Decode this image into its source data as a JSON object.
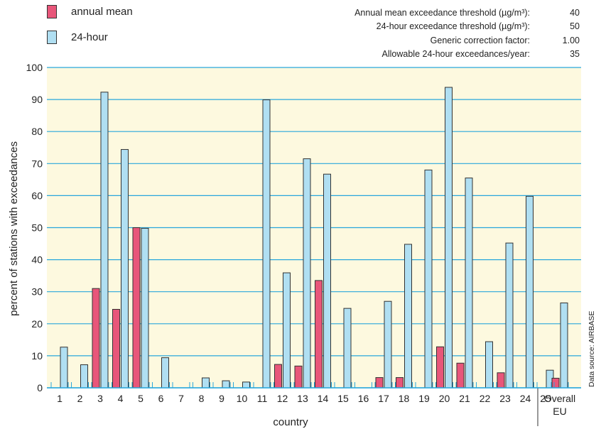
{
  "legend": {
    "items": [
      {
        "label": "annual mean",
        "color": "#e8567a"
      },
      {
        "label": "24-hour",
        "color": "#b0dff2"
      }
    ]
  },
  "parameters": [
    {
      "label": "Annual mean exceedance threshold (µg/m³):",
      "value": "40"
    },
    {
      "label": "24-hour exceedance threshold (µg/m³):",
      "value": "50"
    },
    {
      "label": "Generic correction factor:",
      "value": "1.00"
    },
    {
      "label": "Allowable 24-hour exceedances/year:",
      "value": "35"
    }
  ],
  "source": "Data source: AIRBASE",
  "chart_data": {
    "type": "bar",
    "title": "",
    "xlabel": "country",
    "ylabel": "percent of stations with exceedances",
    "ylim": [
      0,
      100
    ],
    "yticks": [
      0,
      10,
      20,
      30,
      40,
      50,
      60,
      70,
      80,
      90,
      100
    ],
    "grid": true,
    "legend_position": "top-left",
    "background_color": "#fdf9df",
    "grid_color": "#29a7dc",
    "categories": [
      "1",
      "2",
      "3",
      "4",
      "5",
      "6",
      "7",
      "8",
      "9",
      "10",
      "11",
      "12",
      "13",
      "14",
      "15",
      "16",
      "17",
      "18",
      "19",
      "20",
      "21",
      "22",
      "23",
      "24",
      "25",
      "Overall EU"
    ],
    "series": [
      {
        "name": "annual mean",
        "color": "#e8567a",
        "values": [
          0,
          0,
          31,
          24.5,
          50,
          0,
          0,
          0,
          0,
          0,
          0,
          7.3,
          6.8,
          33.5,
          0,
          0,
          3.2,
          3.2,
          0,
          12.8,
          7.7,
          0,
          4.7,
          0,
          0,
          3
        ]
      },
      {
        "name": "24-hour",
        "color": "#b0dff2",
        "values": [
          12.7,
          7.2,
          92.3,
          74.4,
          49.8,
          9.4,
          0,
          3.1,
          2.2,
          1.8,
          89.9,
          35.9,
          71.5,
          66.7,
          24.8,
          0,
          27,
          44.8,
          68,
          93.8,
          65.5,
          14.4,
          45.2,
          59.8,
          5.5,
          26.5
        ]
      }
    ],
    "overall_label_lines": [
      "Overall",
      "EU"
    ]
  }
}
